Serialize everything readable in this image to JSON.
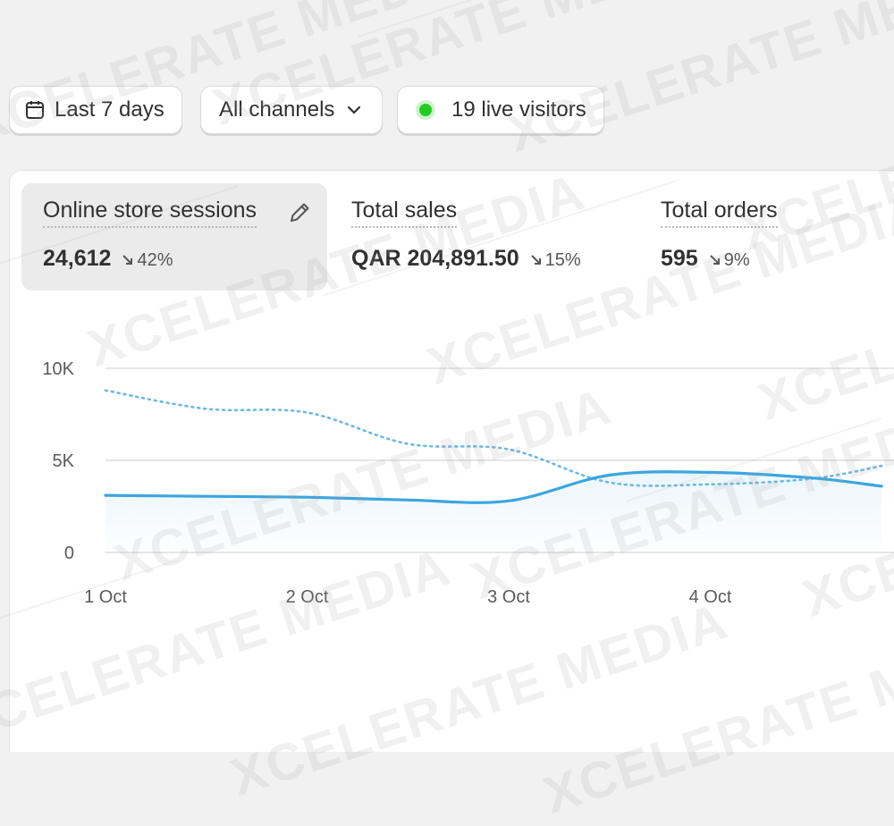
{
  "filters": {
    "date_range": {
      "label": "Last 7 days",
      "icon": "calendar-icon"
    },
    "channel": {
      "label": "All channels",
      "icon": "chevron-down-icon"
    },
    "live": {
      "label": "19 live visitors",
      "dot_color": "#22cc22"
    }
  },
  "metrics": [
    {
      "label": "Online store sessions",
      "value": "24,612",
      "change": "42%",
      "selected": true,
      "icon": "pencil-icon"
    },
    {
      "label": "Total sales",
      "value": "QAR 204,891.50",
      "change": "15%",
      "selected": false
    },
    {
      "label": "Total orders",
      "value": "595",
      "change": "9%",
      "selected": false
    }
  ],
  "chart_data": {
    "type": "line",
    "y_tick_labels": [
      "10K",
      "5K",
      "0"
    ],
    "x_tick_labels": [
      "1 Oct",
      "2 Oct",
      "3 Oct",
      "4 Oct"
    ],
    "ylim": [
      0,
      10000
    ],
    "x": [
      "1 Oct",
      "1.5 Oct",
      "2 Oct",
      "2.5 Oct",
      "3 Oct",
      "3.5 Oct",
      "4 Oct",
      "4.5 Oct",
      "4.85 Oct"
    ],
    "series": [
      {
        "style": "solid",
        "color": "#3ba6df",
        "values": [
          3100,
          3050,
          3000,
          2850,
          2800,
          4200,
          4350,
          4050,
          3600
        ]
      },
      {
        "style": "dotted",
        "color": "#6cb8e6",
        "values": [
          8800,
          7800,
          7600,
          5900,
          5600,
          3800,
          3700,
          4000,
          4700
        ]
      }
    ],
    "grid": true
  },
  "watermark": {
    "text": "XCELERATE MEDIA"
  }
}
